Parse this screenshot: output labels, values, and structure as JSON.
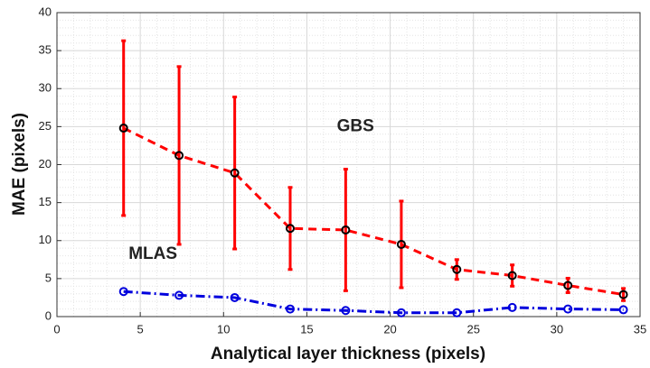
{
  "chart_data": {
    "type": "line",
    "x_label": "Analytical layer thickness (pixels)",
    "y_label": "MAE (pixels)",
    "x": [
      4,
      7.33,
      10.67,
      14,
      17.33,
      20.67,
      24,
      27.33,
      30.67,
      34
    ],
    "series": [
      {
        "name": "GBS",
        "color": "#ff0000",
        "line_style": "dashed",
        "marker_color": "#000000",
        "values": [
          24.8,
          21.2,
          18.9,
          11.6,
          11.4,
          9.5,
          6.2,
          5.4,
          4.1,
          2.9
        ],
        "errors": [
          11.5,
          11.7,
          10,
          5.4,
          8,
          5.7,
          1.3,
          1.4,
          0.95,
          0.8
        ]
      },
      {
        "name": "MLAS",
        "color": "#0000dd",
        "line_style": "dashdot",
        "marker_color": "#0000dd",
        "values": [
          3.3,
          2.8,
          2.5,
          1.0,
          0.8,
          0.5,
          0.5,
          1.2,
          1.0,
          0.9
        ]
      }
    ],
    "xlim": [
      0,
      35
    ],
    "xticks": [
      0,
      5,
      10,
      15,
      20,
      25,
      30,
      35
    ],
    "ylim": [
      0,
      40
    ],
    "yticks": [
      0,
      5,
      10,
      15,
      20,
      25,
      30,
      35,
      40
    ],
    "grid": true,
    "minor_grid": true
  }
}
